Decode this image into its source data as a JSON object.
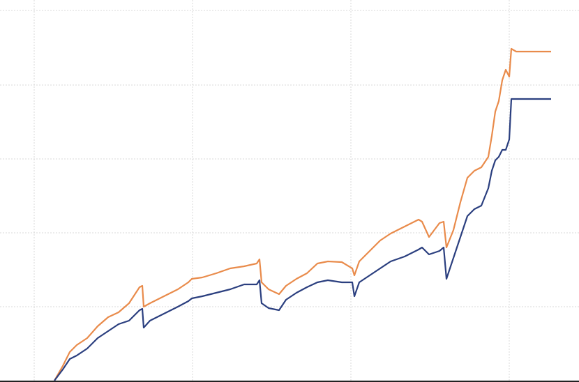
{
  "chart_data": {
    "type": "line",
    "x": [
      29,
      41,
      51,
      61,
      76,
      91,
      106,
      121,
      136,
      151,
      155,
      157,
      166,
      186,
      206,
      221,
      226,
      241,
      261,
      281,
      301,
      319,
      323,
      326,
      336,
      351,
      361,
      376,
      391,
      406,
      421,
      441,
      456,
      459,
      466,
      481,
      496,
      511,
      531,
      551,
      556,
      566,
      581,
      587,
      591,
      601,
      611,
      621,
      631,
      641,
      651,
      656,
      661,
      666,
      671,
      676,
      681,
      684,
      691,
      741
    ],
    "series": [
      {
        "color": "#e98b4b",
        "values": [
          0,
          21,
          41,
          51,
          61,
          78,
          91,
          98,
          111,
          134,
          136,
          106,
          111,
          121,
          131,
          141,
          146,
          148,
          154,
          161,
          164,
          168,
          174,
          141,
          131,
          124,
          136,
          146,
          154,
          168,
          171,
          170,
          161,
          151,
          171,
          186,
          201,
          211,
          221,
          231,
          228,
          206,
          226,
          228,
          191,
          216,
          256,
          291,
          301,
          306,
          321,
          351,
          386,
          401,
          431,
          446,
          436,
          476,
          472,
          472
        ]
      },
      {
        "color": "#2b3f7f",
        "values": [
          0,
          16,
          31,
          36,
          46,
          61,
          71,
          81,
          86,
          101,
          103,
          76,
          86,
          96,
          106,
          114,
          118,
          121,
          126,
          131,
          138,
          138,
          144,
          111,
          104,
          101,
          116,
          126,
          134,
          141,
          144,
          141,
          141,
          121,
          141,
          151,
          161,
          171,
          178,
          188,
          191,
          181,
          186,
          191,
          146,
          176,
          206,
          236,
          246,
          251,
          276,
          301,
          316,
          321,
          331,
          331,
          346,
          404,
          404,
          404
        ]
      }
    ],
    "xlim": [
      -49,
      781
    ],
    "ylim": [
      0,
      546
    ],
    "xticks": [
      0,
      227,
      454,
      681
    ],
    "yticks": [
      0,
      106,
      212,
      318,
      424,
      531
    ],
    "grid": true
  }
}
